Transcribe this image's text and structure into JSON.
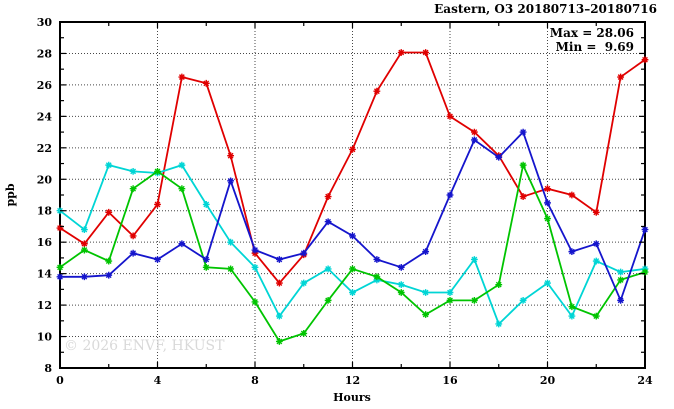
{
  "chart_data": {
    "type": "line",
    "title": "Eastern, O3 20180713–20180716",
    "xlabel": "Hours",
    "ylabel": "ppb",
    "annotations": {
      "max_label": "Max = 28.06",
      "min_label": "Min =  9.69",
      "max": 28.06,
      "min": 9.69
    },
    "watermark": "© 2026 ENVF, HKUST",
    "xlim": [
      0,
      24
    ],
    "ylim": [
      8,
      30
    ],
    "xticks": [
      0,
      4,
      8,
      12,
      16,
      20,
      24
    ],
    "xminor": [
      2,
      6,
      10,
      14,
      18,
      22
    ],
    "yticks": [
      8,
      10,
      12,
      14,
      16,
      18,
      20,
      22,
      24,
      26,
      28,
      30
    ],
    "yminor": [
      9,
      11,
      13,
      15,
      17,
      19,
      21,
      23,
      25,
      27,
      29
    ],
    "grid_x": [
      4,
      8,
      12,
      16,
      20
    ],
    "grid_y": [
      10,
      12,
      14,
      16,
      18,
      20,
      22,
      24,
      26,
      28
    ],
    "grid_on": true,
    "legend": "none",
    "x": [
      0,
      1,
      2,
      3,
      4,
      5,
      6,
      7,
      8,
      9,
      10,
      11,
      12,
      13,
      14,
      15,
      16,
      17,
      18,
      19,
      20,
      21,
      22,
      23,
      24
    ],
    "series": [
      {
        "name": "red-series",
        "color": "#e00000",
        "values": [
          16.9,
          15.9,
          17.9,
          16.4,
          18.4,
          26.5,
          26.1,
          21.5,
          15.3,
          13.4,
          15.2,
          18.9,
          21.9,
          25.6,
          28.06,
          28.06,
          24.0,
          23.0,
          21.5,
          18.9,
          19.4,
          19.0,
          17.9,
          26.5,
          27.6
        ]
      },
      {
        "name": "cyan-series",
        "color": "#00d5d5",
        "values": [
          18.0,
          16.8,
          20.9,
          20.5,
          20.4,
          20.9,
          18.4,
          16.0,
          14.4,
          11.3,
          13.4,
          14.3,
          12.8,
          13.6,
          13.3,
          12.8,
          12.8,
          14.9,
          10.8,
          12.3,
          13.4,
          11.3,
          14.8,
          14.1,
          14.3
        ]
      },
      {
        "name": "green-series",
        "color": "#00c400",
        "values": [
          14.4,
          15.5,
          14.8,
          19.4,
          20.5,
          19.4,
          14.4,
          14.3,
          12.2,
          9.69,
          10.2,
          12.3,
          14.3,
          13.8,
          12.8,
          11.4,
          12.3,
          12.3,
          13.3,
          20.9,
          17.5,
          11.9,
          11.3,
          13.6,
          14.1
        ]
      },
      {
        "name": "blue-series",
        "color": "#1515cc",
        "values": [
          13.8,
          13.8,
          13.9,
          15.3,
          14.9,
          15.9,
          14.9,
          19.9,
          15.5,
          14.9,
          15.3,
          17.3,
          16.4,
          14.9,
          14.4,
          15.4,
          19.0,
          22.5,
          21.4,
          23.0,
          18.5,
          15.4,
          15.9,
          12.3,
          16.8
        ]
      }
    ],
    "colors": {
      "axis": "#000000",
      "grid": "#474747",
      "background": "#ffffff",
      "watermark": "#d9d9d9"
    }
  }
}
